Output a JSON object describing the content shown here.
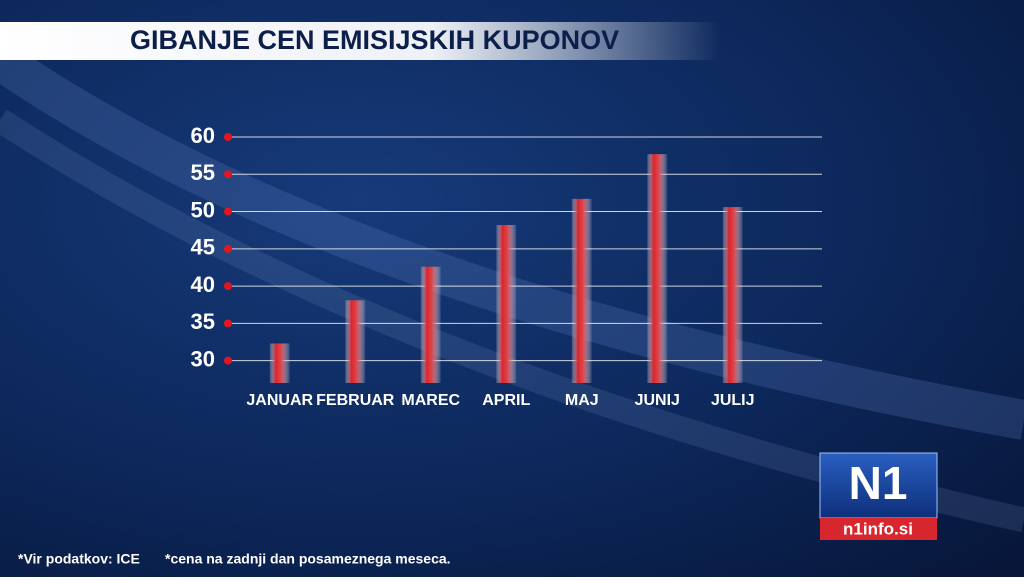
{
  "chart_data": {
    "type": "bar",
    "title": "GIBANJE CEN EMISIJSKIH KUPONOV",
    "categories": [
      "JANUAR",
      "FEBRUAR",
      "MAREC",
      "APRIL",
      "MAJ",
      "JUNIJ",
      "JULIJ"
    ],
    "values": [
      32.3,
      38.1,
      42.6,
      48.2,
      51.7,
      57.7,
      50.6
    ],
    "color": "#d8262e",
    "ylim": [
      27,
      60
    ],
    "yticks": [
      30,
      35,
      40,
      45,
      50,
      55,
      60
    ],
    "grid": true,
    "notes": [
      "*Vir podatkov: ICE",
      "*cena na zadnji dan posameznega meseca."
    ]
  },
  "logo": {
    "text": "N1",
    "site": "n1info.si"
  }
}
